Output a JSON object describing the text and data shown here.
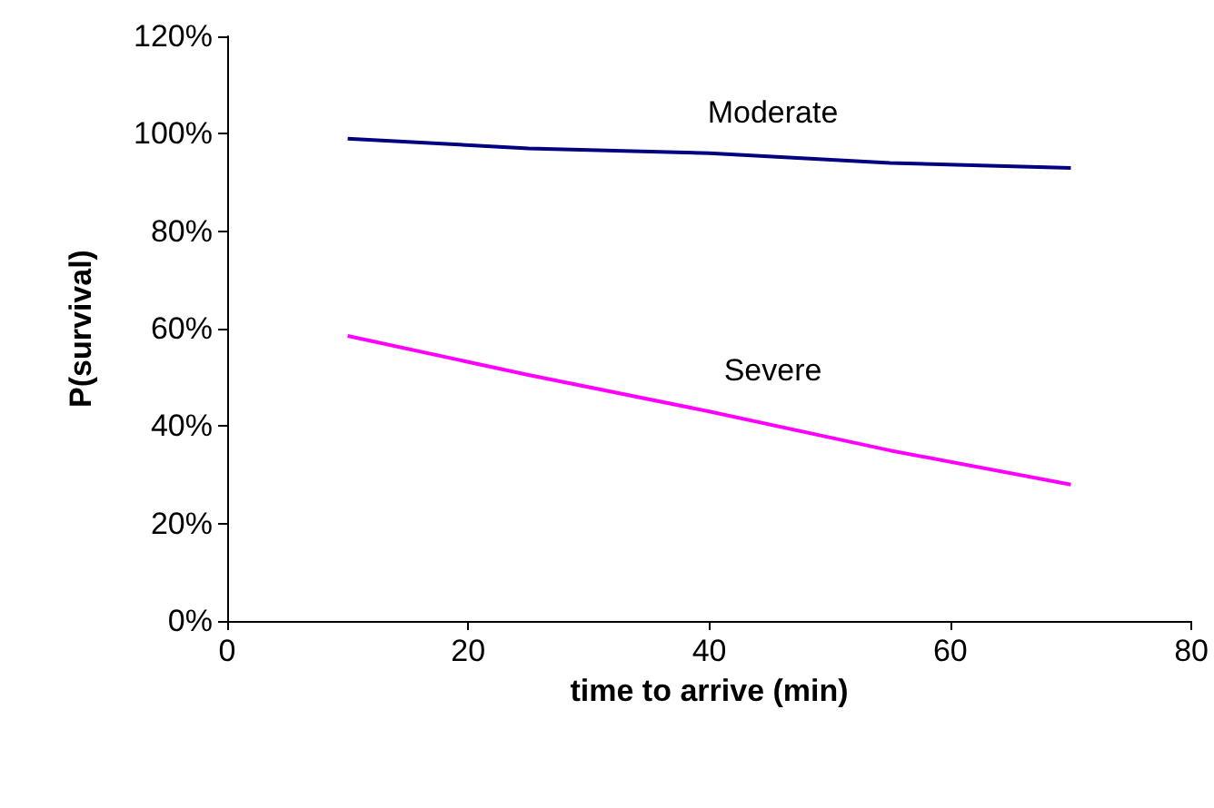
{
  "chart_data": {
    "type": "line",
    "xlabel": "time to arrive (min)",
    "ylabel": "P(survival)",
    "x": [
      10,
      25,
      40,
      55,
      70
    ],
    "series": [
      {
        "name": "Moderate",
        "color": "#000080",
        "values": [
          99,
          97,
          96,
          94,
          93
        ]
      },
      {
        "name": "Severe",
        "color": "#ff00ff",
        "values": [
          58.5,
          50.5,
          43,
          35,
          28
        ]
      }
    ],
    "xlim": [
      0,
      80
    ],
    "xticks": [
      0,
      20,
      40,
      60,
      80
    ],
    "ylim": [
      0,
      120
    ],
    "yticks": [
      {
        "value": 0,
        "label": "0%"
      },
      {
        "value": 20,
        "label": "20%"
      },
      {
        "value": 40,
        "label": "40%"
      },
      {
        "value": 60,
        "label": "60%"
      },
      {
        "value": 80,
        "label": "80%"
      },
      {
        "value": 100,
        "label": "100%"
      },
      {
        "value": 120,
        "label": "120%"
      }
    ],
    "grid": false,
    "legend": false,
    "marker": "none",
    "line_style": "solid"
  }
}
